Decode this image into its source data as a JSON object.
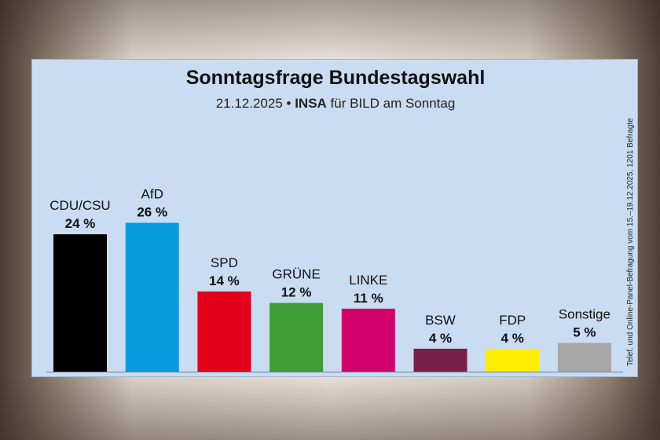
{
  "chart_data": {
    "type": "bar",
    "title": "Sonntagsfrage Bundestagswahl",
    "subtitle_date": "21.12.2025 •",
    "subtitle_institute": "INSA",
    "subtitle_rest": "für BILD am Sonntag",
    "side_note": "Telef. und Online-Panel-Befragung vom 15.–19.12.2025, 1201 Befragte",
    "categories": [
      "CDU/CSU",
      "AfD",
      "SPD",
      "GRÜNE",
      "LINKE",
      "BSW",
      "FDP",
      "Sonstige"
    ],
    "values": [
      24,
      26,
      14,
      12,
      11,
      4,
      4,
      5
    ],
    "value_labels": [
      "24 %",
      "26 %",
      "14 %",
      "12 %",
      "11 %",
      "4 %",
      "4 %",
      "5 %"
    ],
    "colors": [
      "#000000",
      "#0a9ae0",
      "#e3001b",
      "#3f9d35",
      "#d1006a",
      "#7a1f4a",
      "#ffed00",
      "#a6a6a6"
    ],
    "ylim": [
      0,
      28
    ],
    "grid": false
  }
}
